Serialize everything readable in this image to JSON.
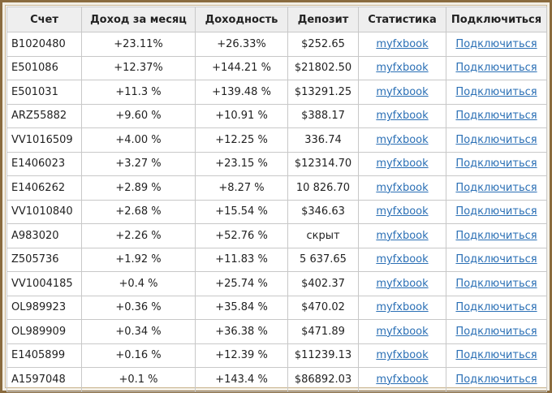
{
  "headers": [
    "Счет",
    "Доход за месяц",
    "Доходность",
    "Депозит",
    "Статистика",
    "Подключиться"
  ],
  "rows": [
    [
      "B1020480",
      "+23.11%",
      "+26.33%",
      "$252.65",
      "myfxbook",
      "Подключиться"
    ],
    [
      "E501086",
      "+12.37%",
      "+144.21 %",
      "$21802.50",
      "myfxbook",
      "Подключиться"
    ],
    [
      "E501031",
      "+11.3 %",
      "+139.48 %",
      "$13291.25",
      "myfxbook",
      "Подключиться"
    ],
    [
      "ARZ55882",
      "+9.60 %",
      "+10.91 %",
      "$388.17",
      "myfxbook",
      "Подключиться"
    ],
    [
      "VV1016509",
      "+4.00 %",
      "+12.25 %",
      "336.74",
      "myfxbook",
      "Подключиться"
    ],
    [
      "E1406023",
      "+3.27 %",
      "+23.15 %",
      "$12314.70",
      "myfxbook",
      "Подключиться"
    ],
    [
      "E1406262",
      "+2.89 %",
      "+8.27 %",
      "10 826.70",
      "myfxbook",
      "Подключиться"
    ],
    [
      "VV1010840",
      "+2.68 %",
      "+15.54 %",
      "$346.63",
      "myfxbook",
      "Подключиться"
    ],
    [
      "A983020",
      "+2.26 %",
      "+52.76 %",
      "скрыт",
      "myfxbook",
      "Подключиться"
    ],
    [
      "Z505736",
      "+1.92 %",
      "+11.83 %",
      "5 637.65",
      "myfxbook",
      "Подключиться"
    ],
    [
      "VV1004185",
      "+0.4 %",
      "+25.74 %",
      "$402.37",
      "myfxbook",
      "Подключиться"
    ],
    [
      "OL989923",
      "+0.36 %",
      "+35.84 %",
      "$470.02",
      "myfxbook",
      "Подключиться"
    ],
    [
      "OL989909",
      "+0.34 %",
      "+36.38 %",
      "$471.89",
      "myfxbook",
      "Подключиться"
    ],
    [
      "E1405899",
      "+0.16 %",
      "+12.39 %",
      "$11239.13",
      "myfxbook",
      "Подключиться"
    ],
    [
      "A1597048",
      "+0.1 %",
      "+143.4 %",
      "$86892.03",
      "myfxbook",
      "Подключиться"
    ]
  ],
  "colors": {
    "link": "#2a6fb5",
    "frame": "#8a6b3e",
    "header_bg": "#eeeeee"
  }
}
